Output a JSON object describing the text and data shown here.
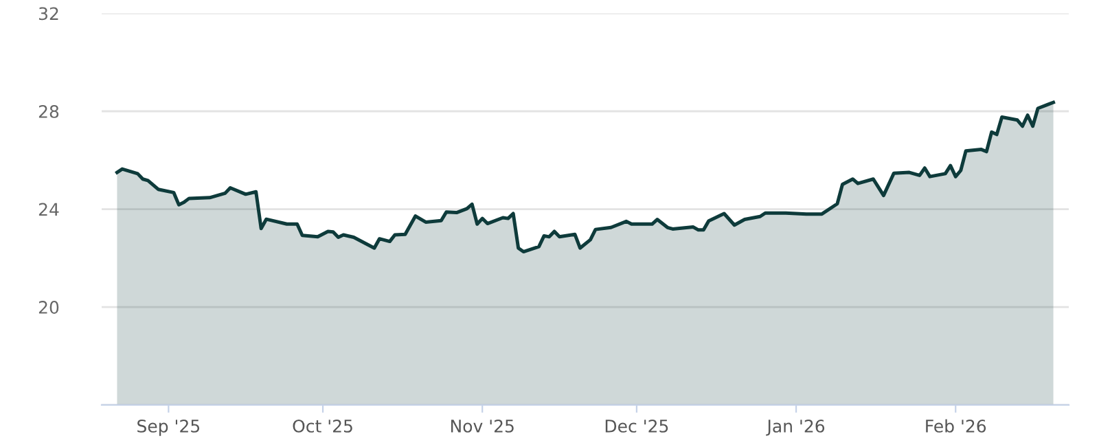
{
  "chart_data": {
    "type": "area",
    "x": [
      "2025-08-22",
      "2025-08-23",
      "2025-08-26",
      "2025-08-27",
      "2025-08-28",
      "2025-08-30",
      "2025-09-02",
      "2025-09-03",
      "2025-09-04",
      "2025-09-05",
      "2025-09-09",
      "2025-09-12",
      "2025-09-13",
      "2025-09-16",
      "2025-09-18",
      "2025-09-19",
      "2025-09-20",
      "2025-09-24",
      "2025-09-26",
      "2025-09-27",
      "2025-09-30",
      "2025-10-02",
      "2025-10-03",
      "2025-10-04",
      "2025-10-05",
      "2025-10-07",
      "2025-10-11",
      "2025-10-12",
      "2025-10-14",
      "2025-10-15",
      "2025-10-17",
      "2025-10-19",
      "2025-10-21",
      "2025-10-24",
      "2025-10-25",
      "2025-10-27",
      "2025-10-29",
      "2025-10-30",
      "2025-10-31",
      "2025-11-01",
      "2025-11-02",
      "2025-11-05",
      "2025-11-06",
      "2025-11-07",
      "2025-11-08",
      "2025-11-09",
      "2025-11-12",
      "2025-11-13",
      "2025-11-14",
      "2025-11-15",
      "2025-11-16",
      "2025-11-19",
      "2025-11-20",
      "2025-11-22",
      "2025-11-23",
      "2025-11-26",
      "2025-11-29",
      "2025-11-30",
      "2025-12-04",
      "2025-12-05",
      "2025-12-07",
      "2025-12-08",
      "2025-12-12",
      "2025-12-13",
      "2025-12-14",
      "2025-12-15",
      "2025-12-18",
      "2025-12-20",
      "2025-12-22",
      "2025-12-25",
      "2025-12-26",
      "2025-12-30",
      "2026-01-03",
      "2026-01-06",
      "2026-01-09",
      "2026-01-10",
      "2026-01-12",
      "2026-01-13",
      "2026-01-16",
      "2026-01-18",
      "2026-01-20",
      "2026-01-23",
      "2026-01-25",
      "2026-01-26",
      "2026-01-27",
      "2026-01-30",
      "2026-01-31",
      "2026-02-01",
      "2026-02-02",
      "2026-02-03",
      "2026-02-06",
      "2026-02-07",
      "2026-02-08",
      "2026-02-09",
      "2026-02-10",
      "2026-02-13",
      "2026-02-14",
      "2026-02-15",
      "2026-02-16",
      "2026-02-17",
      "2026-02-20"
    ],
    "series": [
      {
        "color": "#0e3b3b",
        "values": [
          25.5,
          25.64,
          25.45,
          25.23,
          25.17,
          24.81,
          24.68,
          24.18,
          24.28,
          24.44,
          24.47,
          24.65,
          24.87,
          24.61,
          24.71,
          23.21,
          23.59,
          23.39,
          23.39,
          22.93,
          22.87,
          23.09,
          23.07,
          22.85,
          22.95,
          22.85,
          22.41,
          22.79,
          22.68,
          22.95,
          22.97,
          23.72,
          23.47,
          23.53,
          23.88,
          23.86,
          24.02,
          24.2,
          23.39,
          23.62,
          23.41,
          23.65,
          23.62,
          23.82,
          22.41,
          22.26,
          22.47,
          22.91,
          22.87,
          23.09,
          22.87,
          22.97,
          22.41,
          22.75,
          23.17,
          23.25,
          23.5,
          23.39,
          23.39,
          23.58,
          23.25,
          23.19,
          23.27,
          23.15,
          23.15,
          23.52,
          23.82,
          23.35,
          23.58,
          23.7,
          23.84,
          23.84,
          23.8,
          23.8,
          24.22,
          25.01,
          25.23,
          25.05,
          25.23,
          24.56,
          25.47,
          25.5,
          25.38,
          25.68,
          25.33,
          25.45,
          25.78,
          25.33,
          25.58,
          26.38,
          26.44,
          26.35,
          27.15,
          27.05,
          27.76,
          27.64,
          27.39,
          27.84,
          27.39,
          28.12,
          28.36
        ]
      }
    ],
    "xlim": [
      "2025-08-19",
      "2026-02-23"
    ],
    "xticks": [
      {
        "value": "2025-09-01",
        "label": "Sep '25"
      },
      {
        "value": "2025-10-01",
        "label": "Oct '25"
      },
      {
        "value": "2025-11-01",
        "label": "Nov '25"
      },
      {
        "value": "2025-12-01",
        "label": "Dec '25"
      },
      {
        "value": "2026-01-01",
        "label": "Jan '26"
      },
      {
        "value": "2026-02-01",
        "label": "Feb '26"
      }
    ],
    "ylim": [
      16,
      32
    ],
    "yticks": [
      {
        "value": 16,
        "label": null
      },
      20,
      24,
      28,
      32
    ],
    "grid": "y",
    "legend": false
  }
}
